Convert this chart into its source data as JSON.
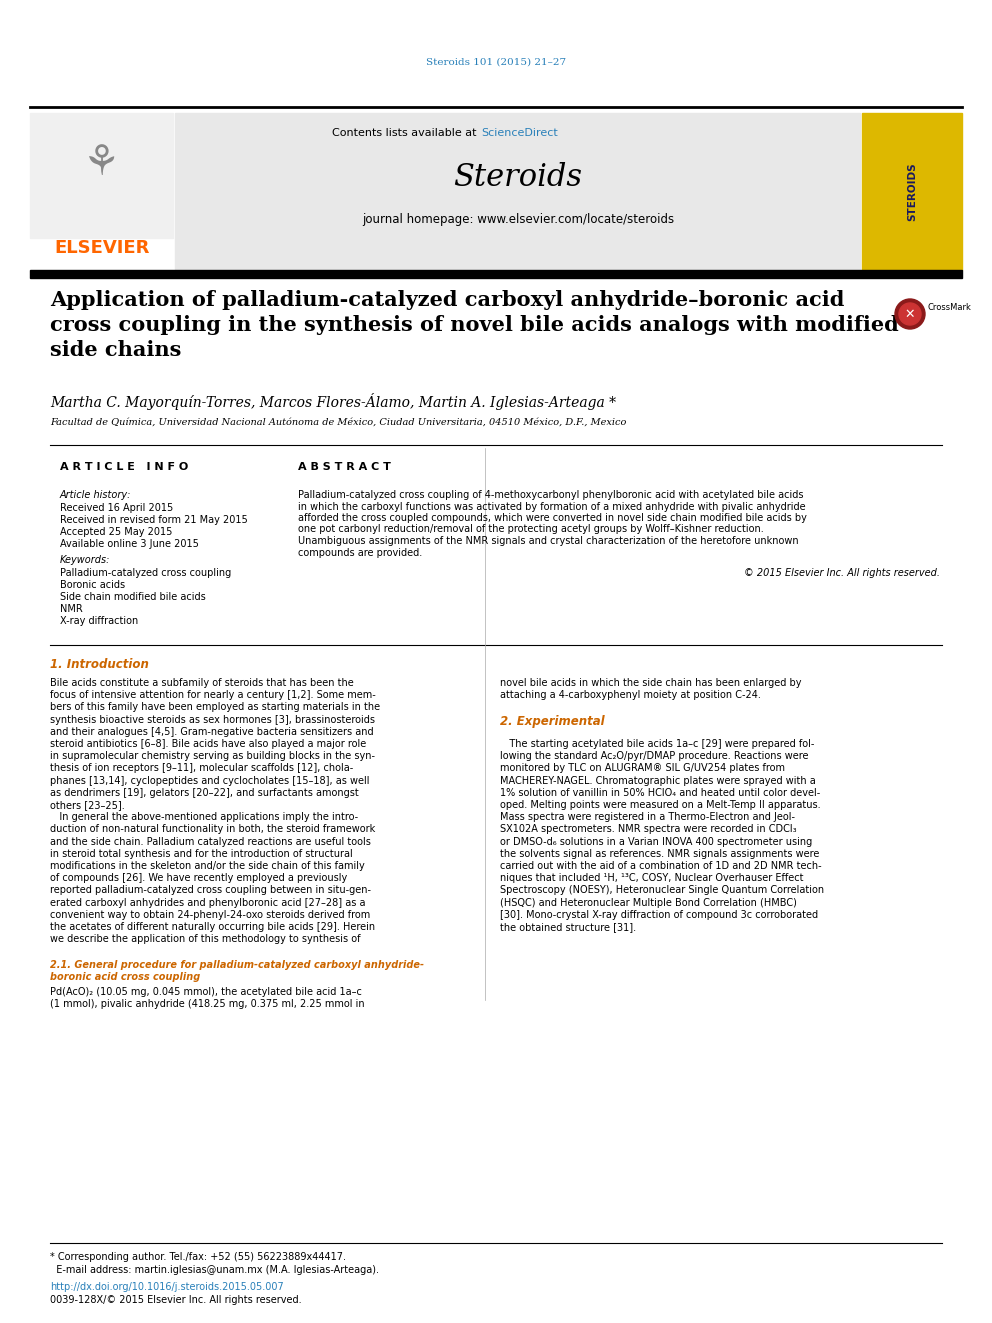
{
  "journal_citation": "Steroids 101 (2015) 21–27",
  "journal_citation_color": "#2980b9",
  "contents_text": "Contents lists available at ",
  "sciencedirect_text": "ScienceDirect",
  "sciencedirect_color": "#2980b9",
  "journal_name": "Steroids",
  "journal_homepage": "journal homepage: www.elsevier.com/locate/steroids",
  "elsevier_color": "#ff6600",
  "header_bg": "#e8e8e8",
  "article_title": "Application of palladium-catalyzed carboxyl anhydride–boronic acid\ncross coupling in the synthesis of novel bile acids analogs with modified\nside chains",
  "authors": "Martha C. Mayorquín-Torres, Marcos Flores-Álamo, Martin A. Iglesias-Arteaga *",
  "affiliation": "Facultad de Química, Universidad Nacional Autónoma de México, Ciudad Universitaria, 04510 México, D.F., Mexico",
  "article_info_header": "A R T I C L E   I N F O",
  "abstract_header": "A B S T R A C T",
  "article_history_label": "Article history:",
  "received_label": "Received 16 April 2015",
  "revised_label": "Received in revised form 21 May 2015",
  "accepted_label": "Accepted 25 May 2015",
  "available_label": "Available online 3 June 2015",
  "keywords_label": "Keywords:",
  "keyword1": "Palladium-catalyzed cross coupling",
  "keyword2": "Boronic acids",
  "keyword3": "Side chain modified bile acids",
  "keyword4": "NMR",
  "keyword5": "X-ray diffraction",
  "copyright_text": "© 2015 Elsevier Inc. All rights reserved.",
  "section1_title": "1. Introduction",
  "section2_title": "2. Experimental",
  "section21_title_line1": "2.1. General procedure for palladium-catalyzed carboxyl anhydride-",
  "section21_title_line2": "boronic acid cross coupling",
  "section21_text": "Pd(AcO)₂ (10.05 mg, 0.045 mmol), the acetylated bile acid 1a–c\n(1 mmol), pivalic anhydride (418.25 mg, 0.375 ml, 2.25 mmol in",
  "doi_text": "http://dx.doi.org/10.1016/j.steroids.2015.05.007",
  "issn_text": "0039-128X/© 2015 Elsevier Inc. All rights reserved.",
  "doi_color": "#2980b9",
  "bg_color": "#ffffff",
  "text_color": "#000000",
  "section_title_color": "#cc6600",
  "subsection_title_color": "#cc6600",
  "abstract_lines": [
    "Palladium-catalyzed cross coupling of 4-methoxycarbonyl phenylboronic acid with acetylated bile acids",
    "in which the carboxyl functions was activated by formation of a mixed anhydride with pivalic anhydride",
    "afforded the cross coupled compounds, which were converted in novel side chain modified bile acids by",
    "one pot carbonyl reduction/removal of the protecting acetyl groups by Wolff–Kishner reduction.",
    "Unambiguous assignments of the NMR signals and crystal characterization of the heretofore unknown",
    "compounds are provided."
  ],
  "body_col1_lines": [
    "Bile acids constitute a subfamily of steroids that has been the",
    "focus of intensive attention for nearly a century [1,2]. Some mem-",
    "bers of this family have been employed as starting materials in the",
    "synthesis bioactive steroids as sex hormones [3], brassinosteroids",
    "and their analogues [4,5]. Gram-negative bacteria sensitizers and",
    "steroid antibiotics [6–8]. Bile acids have also played a major role",
    "in supramolecular chemistry serving as building blocks in the syn-",
    "thesis of ion receptors [9–11], molecular scaffolds [12], chola-",
    "phanes [13,14], cyclopeptides and cyclocholates [15–18], as well",
    "as dendrimers [19], gelators [20–22], and surfactants amongst",
    "others [23–25].",
    "   In general the above-mentioned applications imply the intro-",
    "duction of non-natural functionality in both, the steroid framework",
    "and the side chain. Palladium catalyzed reactions are useful tools",
    "in steroid total synthesis and for the introduction of structural",
    "modifications in the skeleton and/or the side chain of this family",
    "of compounds [26]. We have recently employed a previously",
    "reported palladium-catalyzed cross coupling between in situ-gen-",
    "erated carboxyl anhydrides and phenylboronic acid [27–28] as a",
    "convenient way to obtain 24-phenyl-24-oxo steroids derived from",
    "the acetates of different naturally occurring bile acids [29]. Herein",
    "we describe the application of this methodology to synthesis of"
  ],
  "body_col2_lines": [
    "novel bile acids in which the side chain has been enlarged by",
    "attaching a 4-carboxyphenyl moiety at position C-24.",
    "",
    "2. Experimental",
    "",
    "   The starting acetylated bile acids 1a–c [29] were prepared fol-",
    "lowing the standard Ac₂O/pyr/DMAP procedure. Reactions were",
    "monitored by TLC on ALUGRAM® SIL G/UV254 plates from",
    "MACHEREY-NAGEL. Chromatographic plates were sprayed with a",
    "1% solution of vanillin in 50% HClO₄ and heated until color devel-",
    "oped. Melting points were measured on a Melt-Temp II apparatus.",
    "Mass spectra were registered in a Thermo-Electron and Jeol-",
    "SX102A spectrometers. NMR spectra were recorded in CDCl₃",
    "or DMSO-d₆ solutions in a Varian INOVA 400 spectrometer using",
    "the solvents signal as references. NMR signals assignments were",
    "carried out with the aid of a combination of 1D and 2D NMR tech-",
    "niques that included ¹H, ¹³C, COSY, Nuclear Overhauser Effect",
    "Spectroscopy (NOESY), Heteronuclear Single Quantum Correlation",
    "(HSQC) and Heteronuclear Multiple Bond Correlation (HMBC)",
    "[30]. Mono-crystal X-ray diffraction of compound 3c corroborated",
    "the obtained structure [31]."
  ],
  "footnote1": "* Corresponding author. Tel./fax: +52 (55) 56223889x44417.",
  "footnote2": "  E-mail address: martin.iglesias@unam.mx (M.A. Iglesias-Arteaga)."
}
